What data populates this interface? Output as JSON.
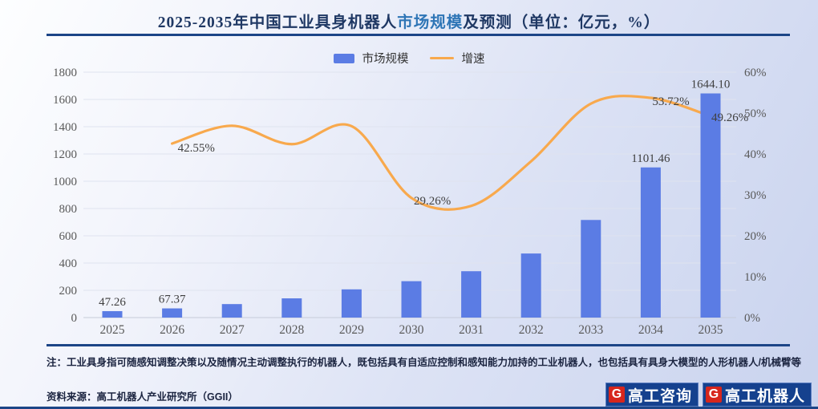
{
  "title": {
    "prefix": "2025-2035年中国工业具身机器人",
    "highlight": "市场规模",
    "suffix": "及预测（单位：亿元，%）"
  },
  "legend": [
    {
      "label": "市场规模"
    },
    {
      "label": "增速"
    }
  ],
  "colors": {
    "bar": "#5B7CE4",
    "line": "#F8A94D",
    "title_navy": "#1F3864",
    "title_highlight": "#2E75B6",
    "divider_navy": "#1C4587",
    "axis_text": "#595959",
    "data_label_text": "#3f3f3f",
    "logo_navy": "#15418E",
    "logo_red": "#D7261D"
  },
  "chart_data": {
    "type": "bar",
    "combo": "bar+line",
    "title": "2025-2035年中国工业具身机器人市场规模及预测（单位：亿元，%）",
    "categories": [
      "2025",
      "2026",
      "2027",
      "2028",
      "2029",
      "2030",
      "2031",
      "2032",
      "2033",
      "2034",
      "2035"
    ],
    "series": [
      {
        "name": "市场规模",
        "type": "bar",
        "axis": "left",
        "unit": "亿元",
        "values": [
          47.26,
          67.37,
          99,
          141,
          207,
          267,
          340,
          470,
          716,
          1101.46,
          1644.1
        ],
        "value_labels_shown": [
          {
            "category": "2025",
            "label": "47.26"
          },
          {
            "category": "2026",
            "label": "67.37"
          },
          {
            "category": "2034",
            "label": "1101.46"
          },
          {
            "category": "2035",
            "label": "1644.10"
          }
        ]
      },
      {
        "name": "增速",
        "type": "line",
        "axis": "right",
        "unit": "%",
        "categories": [
          "2026",
          "2027",
          "2028",
          "2029",
          "2030",
          "2031",
          "2032",
          "2033",
          "2034",
          "2035"
        ],
        "values": [
          42.55,
          46.9,
          42.4,
          46.8,
          29.26,
          27.3,
          38.2,
          52.3,
          53.72,
          49.26
        ],
        "value_labels_shown": [
          {
            "category": "2026",
            "label": "42.55%"
          },
          {
            "category": "2030",
            "label": "29.26%"
          },
          {
            "category": "2034",
            "label": "53.72%"
          },
          {
            "category": "2035",
            "label": "49.26%"
          }
        ]
      }
    ],
    "left_axis": {
      "min": 0,
      "max": 1800,
      "step": 200,
      "ticks": [
        "0",
        "200",
        "400",
        "600",
        "800",
        "1000",
        "1200",
        "1400",
        "1600",
        "1800"
      ]
    },
    "right_axis": {
      "min": 0,
      "max": 60,
      "step": 10,
      "ticks": [
        "0%",
        "10%",
        "20%",
        "30%",
        "40%",
        "50%",
        "60%"
      ]
    },
    "grid": true,
    "legend_position": "top"
  },
  "note": "注：工业具身指可随感知调整决策以及随情况主动调整执行的机器人，既包括具有自适应控制和感知能力加持的工业机器人，也包括具有具身大模型的人形机器人/机械臂等",
  "source": "资料来源：高工机器人产业研究所（GGII）",
  "logos": [
    {
      "g": "G",
      "text": "高工咨询"
    },
    {
      "g": "G",
      "text": "高工机器人"
    }
  ]
}
